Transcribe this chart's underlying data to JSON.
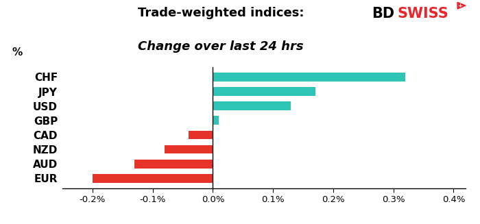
{
  "categories": [
    "CHF",
    "JPY",
    "USD",
    "GBP",
    "CAD",
    "NZD",
    "AUD",
    "EUR"
  ],
  "values": [
    0.0032,
    0.0017,
    0.0013,
    0.0001,
    -0.0004,
    -0.0008,
    -0.0013,
    -0.002
  ],
  "bar_colors_pos": "#2ec4b6",
  "bar_colors_neg": "#e63329",
  "title_line1": "Trade-weighted indices:",
  "title_line2": "Change over last 24 hrs",
  "ylabel": "%",
  "xlim": [
    -0.0025,
    0.0042
  ],
  "xticks": [
    -0.002,
    -0.001,
    0.0,
    0.001,
    0.002,
    0.003,
    0.004
  ],
  "xtick_labels": [
    "-0.2%",
    "-0.1%",
    "0.0%",
    "0.1%",
    "0.2%",
    "0.3%",
    "0.4%"
  ],
  "background_color": "#ffffff",
  "title_fontsize": 13,
  "label_fontsize": 11,
  "tick_fontsize": 9.5
}
